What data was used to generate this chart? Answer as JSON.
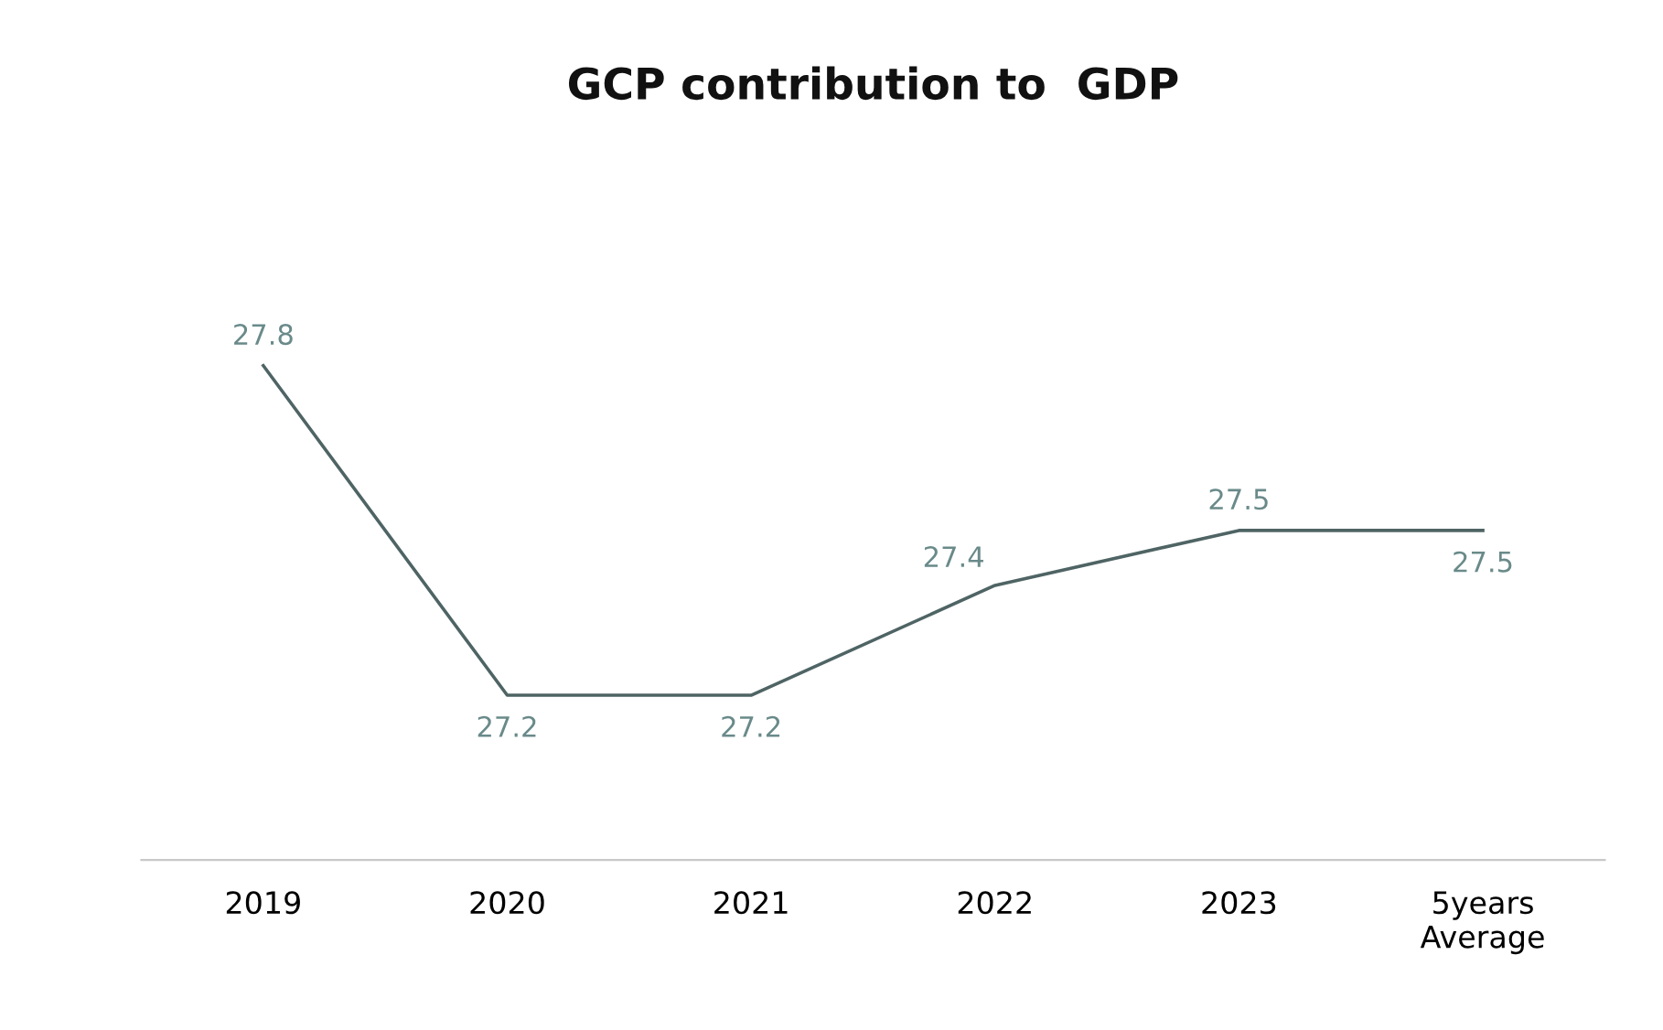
{
  "chart_data": {
    "type": "line",
    "title": "GCP contribution to  GDP",
    "categories": [
      "2019",
      "2020",
      "2021",
      "2022",
      "2023",
      "5years\nAverage"
    ],
    "series": [
      {
        "color": "#4f6464",
        "values": [
          27.8,
          27.2,
          27.2,
          27.4,
          27.5,
          27.5
        ]
      }
    ],
    "tick_labels": "x",
    "data_labels": true,
    "grid": false,
    "legend": false,
    "line_style": "solid"
  }
}
